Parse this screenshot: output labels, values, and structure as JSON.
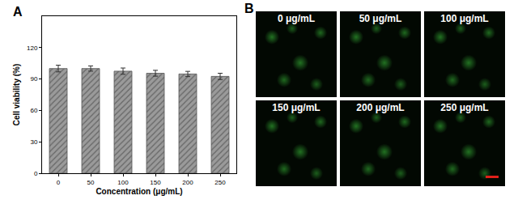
{
  "chart_data": {
    "type": "bar",
    "annotations": [
      {
        "text": "A"
      }
    ],
    "x_label": "Concentration (μg/mL)",
    "y_label": "Cell viability (%)",
    "categories": [
      "0",
      "50",
      "100",
      "150",
      "200",
      "250"
    ],
    "values": [
      100,
      100,
      97.5,
      95.5,
      94.8,
      92.5
    ],
    "errors": [
      3.2,
      2.5,
      3,
      2.8,
      2.5,
      3
    ],
    "color": "#9a9a9a",
    "ylim": [
      0,
      150
    ],
    "yticks": [
      0,
      30,
      60,
      90,
      120
    ],
    "grid": false
  },
  "panel_b": {
    "label": "B",
    "images": [
      {
        "label": "0 μg/mL"
      },
      {
        "label": "50 μg/mL"
      },
      {
        "label": "100 μg/mL"
      },
      {
        "label": "150 μg/mL"
      },
      {
        "label": "200 μg/mL"
      },
      {
        "label": "250 μg/mL"
      }
    ]
  }
}
